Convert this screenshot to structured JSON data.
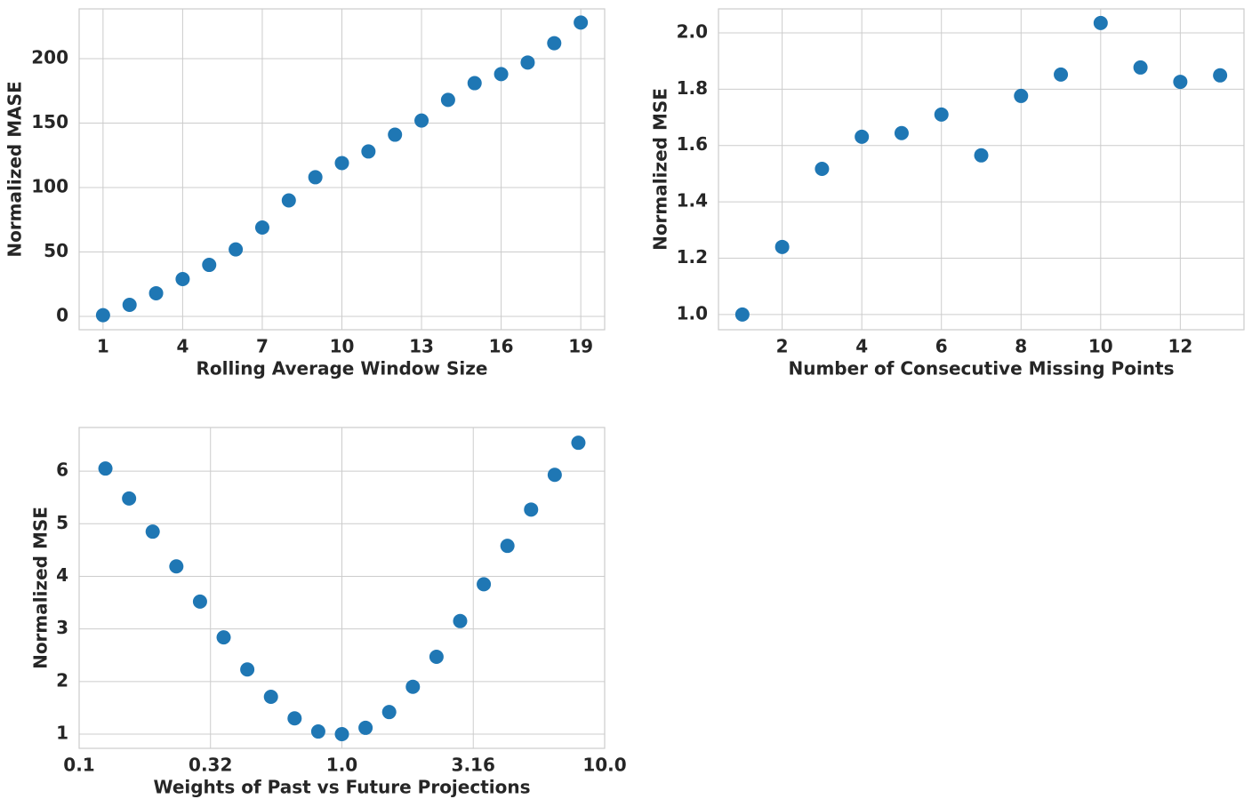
{
  "chart_data": [
    {
      "type": "scatter",
      "xlabel": "Rolling Average Window Size",
      "ylabel": "Normalized MASE",
      "x": [
        1,
        2,
        3,
        4,
        5,
        6,
        7,
        8,
        9,
        10,
        11,
        12,
        13,
        14,
        15,
        16,
        17,
        18,
        19
      ],
      "values": [
        1,
        9,
        18,
        29,
        40,
        52,
        69,
        90,
        108,
        119,
        128,
        141,
        152,
        168,
        181,
        188,
        197,
        212,
        228
      ],
      "color": "#1f77b4",
      "xlim": [
        0.1,
        19.9
      ],
      "xticks": [
        1,
        4,
        7,
        10,
        13,
        16,
        19
      ],
      "ylim": [
        -10.3,
        238.6
      ],
      "yticks": [
        0,
        50,
        100,
        150,
        200
      ],
      "grid": true,
      "xscale": "linear"
    },
    {
      "type": "scatter",
      "xlabel": "Number of Consecutive Missing Points",
      "ylabel": "Normalized MSE",
      "x": [
        1,
        2,
        3,
        4,
        5,
        6,
        7,
        8,
        9,
        10,
        11,
        12,
        13
      ],
      "values": [
        1.0,
        1.24,
        1.517,
        1.631,
        1.644,
        1.71,
        1.565,
        1.776,
        1.852,
        2.035,
        1.877,
        1.826,
        1.849
      ],
      "color": "#1f77b4",
      "xlim": [
        0.4,
        13.6
      ],
      "xticks": [
        2,
        4,
        6,
        8,
        10,
        12
      ],
      "ylim": [
        0.946,
        2.085
      ],
      "yticks": [
        {
          "value": 1,
          "label": "1.0"
        },
        1.2,
        1.4,
        1.6,
        1.8,
        {
          "value": 2,
          "label": "2.0"
        }
      ],
      "grid": true,
      "xscale": "linear"
    },
    {
      "type": "scatter",
      "xlabel": "Weights of Past vs Future Projections",
      "ylabel": "Normalized MSE",
      "x": [
        0.1259,
        0.1549,
        0.1905,
        0.2344,
        0.2884,
        0.3548,
        0.4365,
        0.537,
        0.6607,
        0.8128,
        1.0,
        1.2303,
        1.5136,
        1.8621,
        2.2909,
        2.8184,
        3.4674,
        4.2658,
        5.2481,
        6.4565,
        7.9433
      ],
      "values": [
        6.05,
        5.48,
        4.85,
        4.19,
        3.52,
        2.84,
        2.23,
        1.71,
        1.3,
        1.05,
        1.0,
        1.12,
        1.42,
        1.9,
        2.47,
        3.15,
        3.85,
        4.58,
        5.27,
        5.93,
        6.54
      ],
      "color": "#1f77b4",
      "xlim": [
        0.1,
        10
      ],
      "xticks": [
        0.1,
        {
          "value": 0.3162,
          "label": "0.32"
        },
        {
          "value": 1,
          "label": "1.0"
        },
        {
          "value": 3.162,
          "label": "3.16"
        },
        {
          "value": 10,
          "label": "10.0"
        }
      ],
      "ylim": [
        0.73,
        6.83
      ],
      "yticks": [
        1,
        2,
        3,
        4,
        5,
        6
      ],
      "grid": true,
      "xscale": "log"
    }
  ]
}
